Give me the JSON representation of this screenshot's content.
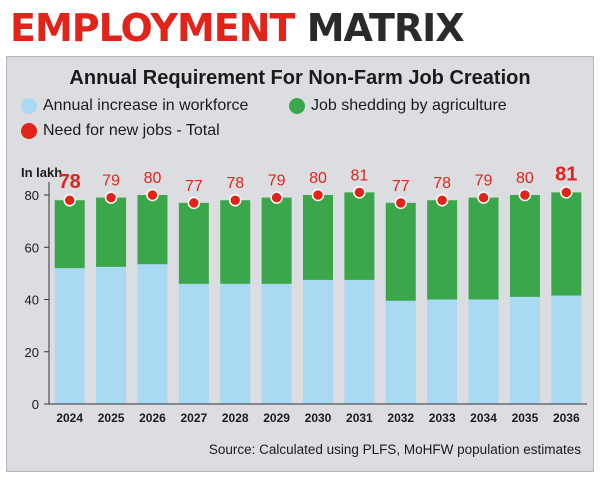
{
  "headline": {
    "part1": "EMPLOYMENT",
    "part2": "MATRIX"
  },
  "chart_data": {
    "type": "bar",
    "stacked": true,
    "title": "Annual Requirement For Non-Farm Job Creation",
    "unit_label": "In lakh",
    "categories": [
      "2024",
      "2025",
      "2026",
      "2027",
      "2028",
      "2029",
      "2030",
      "2031",
      "2032",
      "2033",
      "2034",
      "2035",
      "2036"
    ],
    "series": [
      {
        "name": "Annual increase in workforce",
        "color": "#a9d9f3",
        "values": [
          52,
          52.5,
          53.5,
          46,
          46,
          46,
          47.5,
          47.5,
          39.5,
          40,
          40,
          41,
          41.5
        ]
      },
      {
        "name": "Job shedding by agriculture",
        "color": "#3aa84a",
        "values": [
          26,
          26.5,
          26.5,
          31,
          32,
          33,
          32.5,
          33.5,
          37.5,
          38,
          39,
          39,
          39.5
        ]
      }
    ],
    "total_series": {
      "name": "Need for new jobs - Total",
      "color": "#e2231a",
      "values": [
        78,
        79,
        80,
        77,
        78,
        79,
        80,
        81,
        77,
        78,
        79,
        80,
        81
      ]
    },
    "y_ticks": [
      0,
      20,
      40,
      60,
      80
    ],
    "ylim": [
      0,
      90
    ],
    "legend_position": "top-left",
    "grid": false
  },
  "source": "Source: Calculated using PLFS, MoHFW population estimates"
}
